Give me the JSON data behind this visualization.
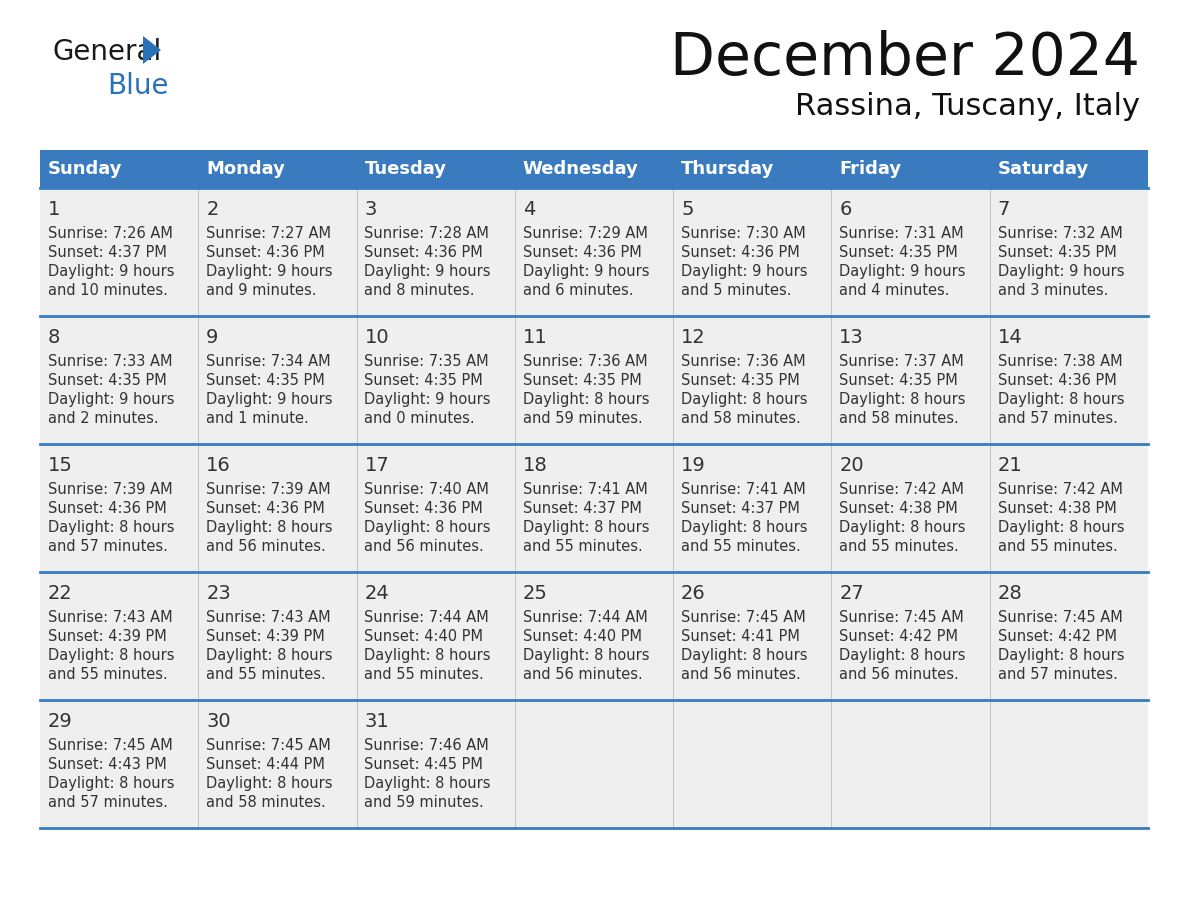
{
  "title": "December 2024",
  "subtitle": "Rassina, Tuscany, Italy",
  "header_color": "#3a7abf",
  "header_text_color": "#ffffff",
  "background_color": "#ffffff",
  "cell_bg_color": "#efefef",
  "separator_color": "#3a7abf",
  "text_color": "#333333",
  "logo_text_color": "#1a1a1a",
  "logo_blue_color": "#2a72b8",
  "days_of_week": [
    "Sunday",
    "Monday",
    "Tuesday",
    "Wednesday",
    "Thursday",
    "Friday",
    "Saturday"
  ],
  "calendar": [
    [
      {
        "day": 1,
        "sunrise": "7:26 AM",
        "sunset": "4:37 PM",
        "daylight_line1": "9 hours",
        "daylight_line2": "and 10 minutes."
      },
      {
        "day": 2,
        "sunrise": "7:27 AM",
        "sunset": "4:36 PM",
        "daylight_line1": "9 hours",
        "daylight_line2": "and 9 minutes."
      },
      {
        "day": 3,
        "sunrise": "7:28 AM",
        "sunset": "4:36 PM",
        "daylight_line1": "9 hours",
        "daylight_line2": "and 8 minutes."
      },
      {
        "day": 4,
        "sunrise": "7:29 AM",
        "sunset": "4:36 PM",
        "daylight_line1": "9 hours",
        "daylight_line2": "and 6 minutes."
      },
      {
        "day": 5,
        "sunrise": "7:30 AM",
        "sunset": "4:36 PM",
        "daylight_line1": "9 hours",
        "daylight_line2": "and 5 minutes."
      },
      {
        "day": 6,
        "sunrise": "7:31 AM",
        "sunset": "4:35 PM",
        "daylight_line1": "9 hours",
        "daylight_line2": "and 4 minutes."
      },
      {
        "day": 7,
        "sunrise": "7:32 AM",
        "sunset": "4:35 PM",
        "daylight_line1": "9 hours",
        "daylight_line2": "and 3 minutes."
      }
    ],
    [
      {
        "day": 8,
        "sunrise": "7:33 AM",
        "sunset": "4:35 PM",
        "daylight_line1": "9 hours",
        "daylight_line2": "and 2 minutes."
      },
      {
        "day": 9,
        "sunrise": "7:34 AM",
        "sunset": "4:35 PM",
        "daylight_line1": "9 hours",
        "daylight_line2": "and 1 minute."
      },
      {
        "day": 10,
        "sunrise": "7:35 AM",
        "sunset": "4:35 PM",
        "daylight_line1": "9 hours",
        "daylight_line2": "and 0 minutes."
      },
      {
        "day": 11,
        "sunrise": "7:36 AM",
        "sunset": "4:35 PM",
        "daylight_line1": "8 hours",
        "daylight_line2": "and 59 minutes."
      },
      {
        "day": 12,
        "sunrise": "7:36 AM",
        "sunset": "4:35 PM",
        "daylight_line1": "8 hours",
        "daylight_line2": "and 58 minutes."
      },
      {
        "day": 13,
        "sunrise": "7:37 AM",
        "sunset": "4:35 PM",
        "daylight_line1": "8 hours",
        "daylight_line2": "and 58 minutes."
      },
      {
        "day": 14,
        "sunrise": "7:38 AM",
        "sunset": "4:36 PM",
        "daylight_line1": "8 hours",
        "daylight_line2": "and 57 minutes."
      }
    ],
    [
      {
        "day": 15,
        "sunrise": "7:39 AM",
        "sunset": "4:36 PM",
        "daylight_line1": "8 hours",
        "daylight_line2": "and 57 minutes."
      },
      {
        "day": 16,
        "sunrise": "7:39 AM",
        "sunset": "4:36 PM",
        "daylight_line1": "8 hours",
        "daylight_line2": "and 56 minutes."
      },
      {
        "day": 17,
        "sunrise": "7:40 AM",
        "sunset": "4:36 PM",
        "daylight_line1": "8 hours",
        "daylight_line2": "and 56 minutes."
      },
      {
        "day": 18,
        "sunrise": "7:41 AM",
        "sunset": "4:37 PM",
        "daylight_line1": "8 hours",
        "daylight_line2": "and 55 minutes."
      },
      {
        "day": 19,
        "sunrise": "7:41 AM",
        "sunset": "4:37 PM",
        "daylight_line1": "8 hours",
        "daylight_line2": "and 55 minutes."
      },
      {
        "day": 20,
        "sunrise": "7:42 AM",
        "sunset": "4:38 PM",
        "daylight_line1": "8 hours",
        "daylight_line2": "and 55 minutes."
      },
      {
        "day": 21,
        "sunrise": "7:42 AM",
        "sunset": "4:38 PM",
        "daylight_line1": "8 hours",
        "daylight_line2": "and 55 minutes."
      }
    ],
    [
      {
        "day": 22,
        "sunrise": "7:43 AM",
        "sunset": "4:39 PM",
        "daylight_line1": "8 hours",
        "daylight_line2": "and 55 minutes."
      },
      {
        "day": 23,
        "sunrise": "7:43 AM",
        "sunset": "4:39 PM",
        "daylight_line1": "8 hours",
        "daylight_line2": "and 55 minutes."
      },
      {
        "day": 24,
        "sunrise": "7:44 AM",
        "sunset": "4:40 PM",
        "daylight_line1": "8 hours",
        "daylight_line2": "and 55 minutes."
      },
      {
        "day": 25,
        "sunrise": "7:44 AM",
        "sunset": "4:40 PM",
        "daylight_line1": "8 hours",
        "daylight_line2": "and 56 minutes."
      },
      {
        "day": 26,
        "sunrise": "7:45 AM",
        "sunset": "4:41 PM",
        "daylight_line1": "8 hours",
        "daylight_line2": "and 56 minutes."
      },
      {
        "day": 27,
        "sunrise": "7:45 AM",
        "sunset": "4:42 PM",
        "daylight_line1": "8 hours",
        "daylight_line2": "and 56 minutes."
      },
      {
        "day": 28,
        "sunrise": "7:45 AM",
        "sunset": "4:42 PM",
        "daylight_line1": "8 hours",
        "daylight_line2": "and 57 minutes."
      }
    ],
    [
      {
        "day": 29,
        "sunrise": "7:45 AM",
        "sunset": "4:43 PM",
        "daylight_line1": "8 hours",
        "daylight_line2": "and 57 minutes."
      },
      {
        "day": 30,
        "sunrise": "7:45 AM",
        "sunset": "4:44 PM",
        "daylight_line1": "8 hours",
        "daylight_line2": "and 58 minutes."
      },
      {
        "day": 31,
        "sunrise": "7:46 AM",
        "sunset": "4:45 PM",
        "daylight_line1": "8 hours",
        "daylight_line2": "and 59 minutes."
      },
      null,
      null,
      null,
      null
    ]
  ]
}
